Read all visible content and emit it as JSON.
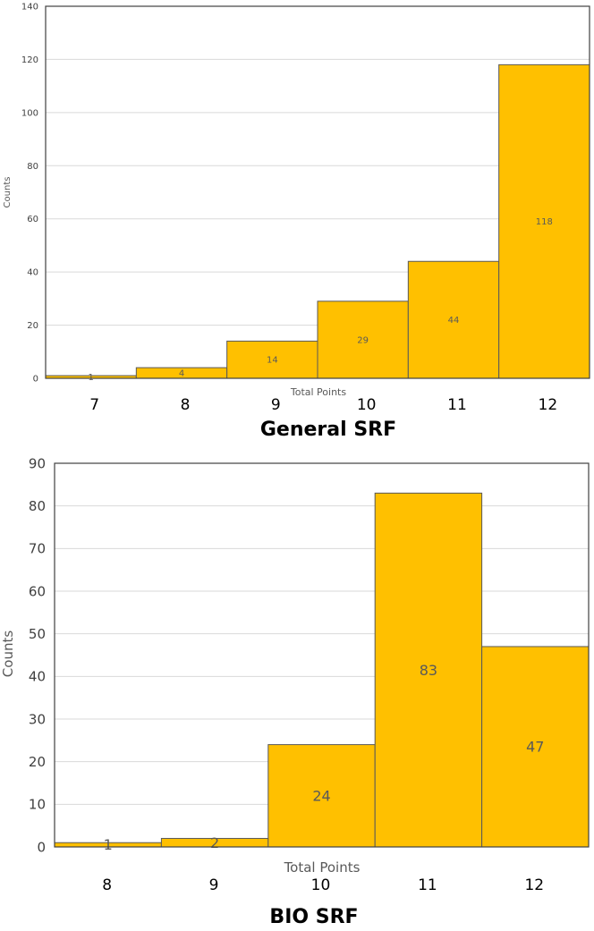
{
  "chart_data": [
    {
      "type": "bar",
      "title": "General SRF",
      "xlabel": "Total Points",
      "ylabel": "Counts",
      "categories": [
        "7",
        "8",
        "9",
        "10",
        "11",
        "12"
      ],
      "values": [
        1,
        4,
        14,
        29,
        44,
        118
      ],
      "data_labels": [
        "1",
        "4",
        "14",
        "29",
        "44",
        "118"
      ],
      "yticks": [
        "0",
        "20",
        "40",
        "60",
        "80",
        "100",
        "120",
        "140"
      ],
      "ylim": [
        0,
        140
      ],
      "grid": true,
      "bar_color": "#FFC000"
    },
    {
      "type": "bar",
      "title": "BIO SRF",
      "xlabel": "Total Points",
      "ylabel": "Counts",
      "categories": [
        "8",
        "9",
        "10",
        "11",
        "12"
      ],
      "values": [
        1,
        2,
        24,
        83,
        47
      ],
      "data_labels": [
        "1",
        "2",
        "24",
        "83",
        "47"
      ],
      "yticks": [
        "0",
        "10",
        "20",
        "30",
        "40",
        "50",
        "60",
        "70",
        "80",
        "90"
      ],
      "ylim": [
        0,
        90
      ],
      "grid": true,
      "bar_color": "#FFC000"
    }
  ]
}
